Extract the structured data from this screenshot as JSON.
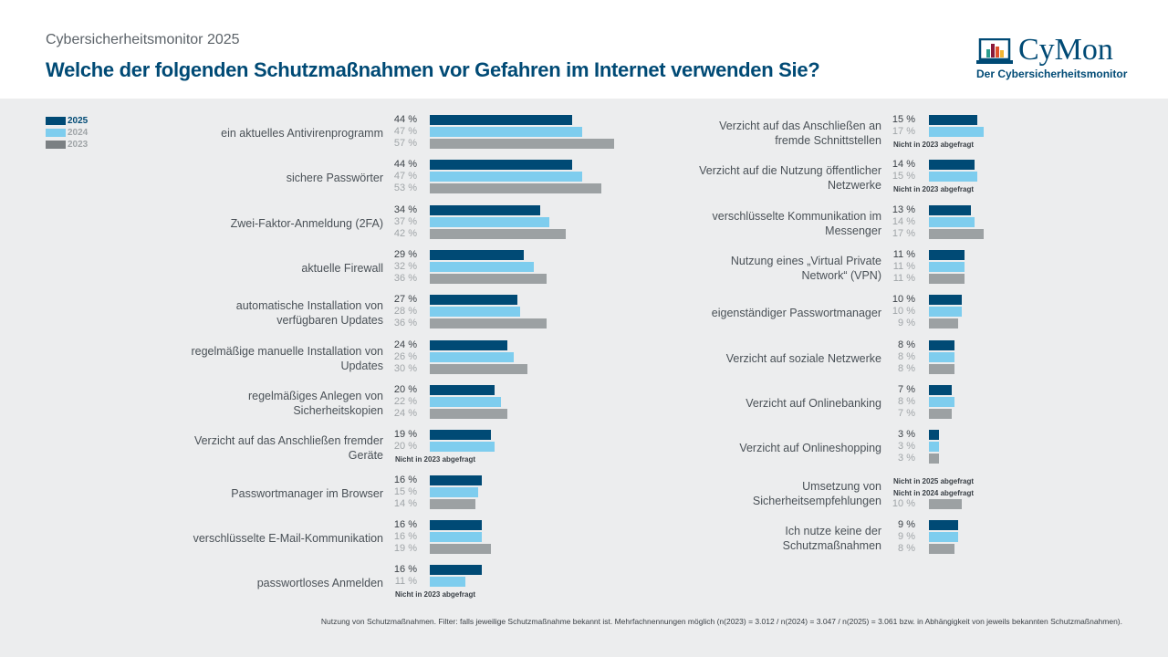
{
  "header": {
    "supertitle": "Cybersicherheitsmonitor 2025",
    "title": "Welche der folgenden Schutzmaßnahmen vor Gefahren im Internet verwenden Sie?"
  },
  "logo": {
    "name": "CyMon",
    "subtitle": "Der Cybersicherheitsmonitor"
  },
  "colors": {
    "2025": "#004a75",
    "2024": "#7ecdee",
    "2023": "#9ca1a3",
    "label2025": "#004a75",
    "label_other": "#a0a5a8"
  },
  "chart_data": {
    "type": "bar",
    "orientation": "horizontal",
    "legend": {
      "placement": "top-left",
      "entries": [
        "2025",
        "2024",
        "2023"
      ]
    },
    "unit": "%",
    "columns": [
      {
        "items": [
          {
            "label": "ein aktuelles Antivirenprogramm",
            "values": [
              44,
              47,
              57
            ]
          },
          {
            "label": "sichere Passwörter",
            "values": [
              44,
              47,
              53
            ]
          },
          {
            "label": "Zwei-Faktor-Anmeldung (2FA)",
            "values": [
              34,
              37,
              42
            ]
          },
          {
            "label": "aktuelle Firewall",
            "values": [
              29,
              32,
              36
            ]
          },
          {
            "label": "automatische Installation von verfügbaren Updates",
            "values": [
              27,
              28,
              36
            ]
          },
          {
            "label": "regelmäßige manuelle Installation von Updates",
            "values": [
              24,
              26,
              30
            ]
          },
          {
            "label": "regelmäßiges Anlegen von Sicherheitskopien",
            "values": [
              20,
              22,
              24
            ]
          },
          {
            "label": "Verzicht auf das Anschließen fremder Geräte",
            "values": [
              19,
              20,
              null
            ],
            "notes": [
              null,
              null,
              "Nicht  in 2023 abgefragt"
            ]
          },
          {
            "label": "Passwortmanager im Browser",
            "values": [
              16,
              15,
              14
            ]
          },
          {
            "label": "verschlüsselte E-Mail-Kommunikation",
            "values": [
              16,
              16,
              19
            ]
          },
          {
            "label": "passwortloses Anmelden",
            "values": [
              16,
              11,
              null
            ],
            "notes": [
              null,
              null,
              "Nicht  in 2023 abgefragt"
            ]
          }
        ]
      },
      {
        "items": [
          {
            "label": "Verzicht auf das Anschließen an fremde Schnittstellen",
            "values": [
              15,
              17,
              null
            ],
            "notes": [
              null,
              null,
              "Nicht  in 2023 abgefragt"
            ]
          },
          {
            "label": "Verzicht auf die Nutzung öffentlicher Netzwerke",
            "values": [
              14,
              15,
              null
            ],
            "notes": [
              null,
              null,
              "Nicht  in 2023 abgefragt"
            ]
          },
          {
            "label": "verschlüsselte Kommunikation im Messenger",
            "values": [
              13,
              14,
              17
            ]
          },
          {
            "label": "Nutzung eines „Virtual Private Network“ (VPN)",
            "values": [
              11,
              11,
              11
            ]
          },
          {
            "label": "eigenständiger Passwortmanager",
            "values": [
              10,
              10,
              9
            ]
          },
          {
            "label": "Verzicht auf soziale Netzwerke",
            "values": [
              8,
              8,
              8
            ]
          },
          {
            "label": "Verzicht auf Onlinebanking",
            "values": [
              7,
              8,
              7
            ]
          },
          {
            "label": "Verzicht auf Onlineshopping",
            "values": [
              3,
              3,
              3
            ]
          },
          {
            "label": "Umsetzung von Sicherheitsempfehlungen",
            "values": [
              null,
              null,
              10
            ],
            "notes": [
              "Nicht  in 2025 abgefragt",
              "Nicht  in 2024 abgefragt",
              null
            ]
          },
          {
            "label": "Ich nutze keine der Schutzmaßnahmen",
            "values": [
              9,
              9,
              8
            ]
          }
        ]
      }
    ]
  },
  "footnote": "Nutzung von Schutzmaßnahmen. Filter: falls jeweilige Schutzmaßnahme bekannt ist. Mehrfachnennungen möglich (n(2023) = 3.012 / n(2024) = 3.047 / n(2025) = 3.061 bzw. in Abhängigkeit von jeweils bekannten Schutzmaßnahmen)."
}
